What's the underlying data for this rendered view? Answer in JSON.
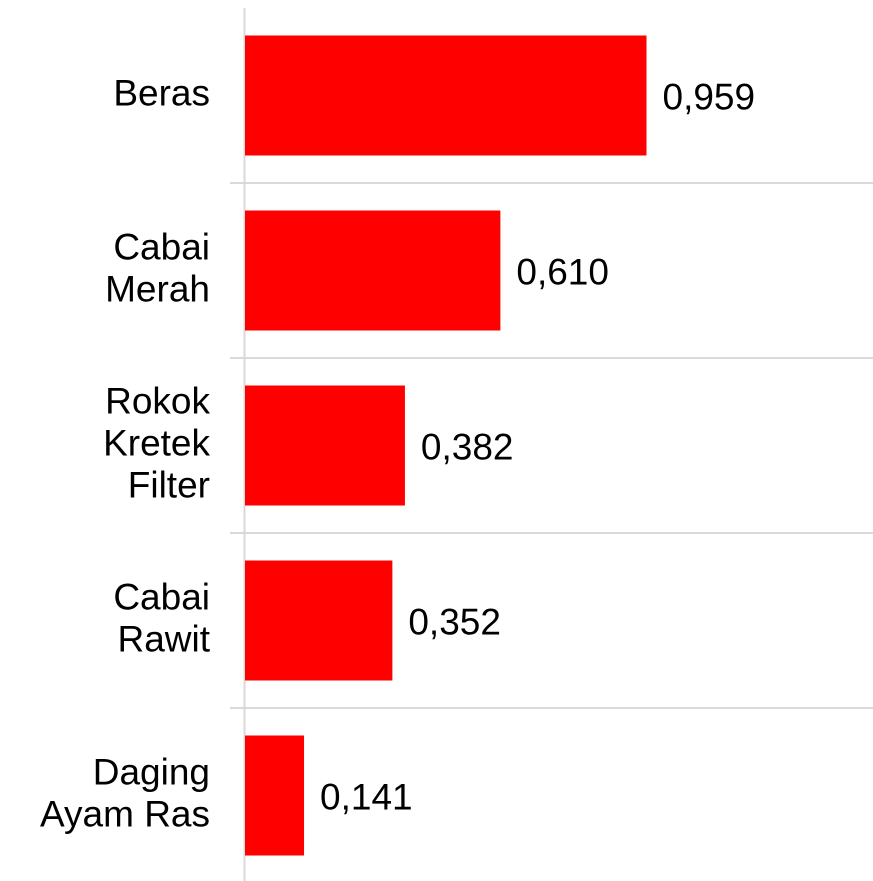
{
  "chart_data": {
    "type": "barh",
    "categories": [
      "Beras",
      "Cabai\nMerah",
      "Rokok\nKretek\nFilter",
      "Cabai\nRawit",
      "Daging\nAyam Ras"
    ],
    "values": [
      0.959,
      0.61,
      0.382,
      0.352,
      0.141
    ],
    "value_labels": [
      "0,959",
      "0,610",
      "0,382",
      "0,352",
      "0,141"
    ],
    "color": "#ff0000",
    "xlim": [
      0,
      1.5
    ]
  }
}
